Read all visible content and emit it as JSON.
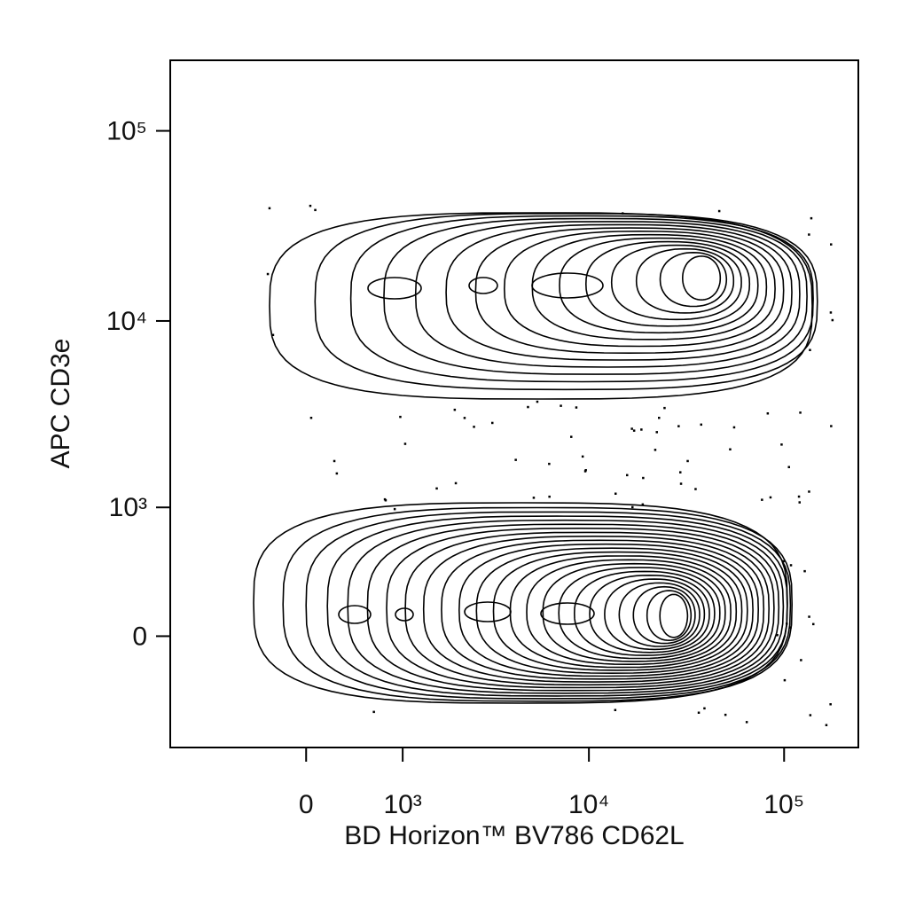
{
  "chart_data": {
    "type": "contour",
    "x_label": "BD Horizon™ BV786 CD62L",
    "y_label": "APC CD3e",
    "scale": "biexponential",
    "xlim": [
      -1700,
      240000
    ],
    "ylim": [
      -790,
      235000
    ],
    "xticks": [
      0,
      {
        "value": 1000,
        "label": "10³"
      },
      {
        "value": 10000,
        "label": "10⁴"
      },
      {
        "value": 100000,
        "label": "10⁵"
      }
    ],
    "yticks": [
      0,
      {
        "value": 1000,
        "label": "10³"
      },
      {
        "value": 10000,
        "label": "10⁴"
      },
      {
        "value": 100000,
        "label": "10⁵"
      }
    ],
    "color": "#000000"
  }
}
